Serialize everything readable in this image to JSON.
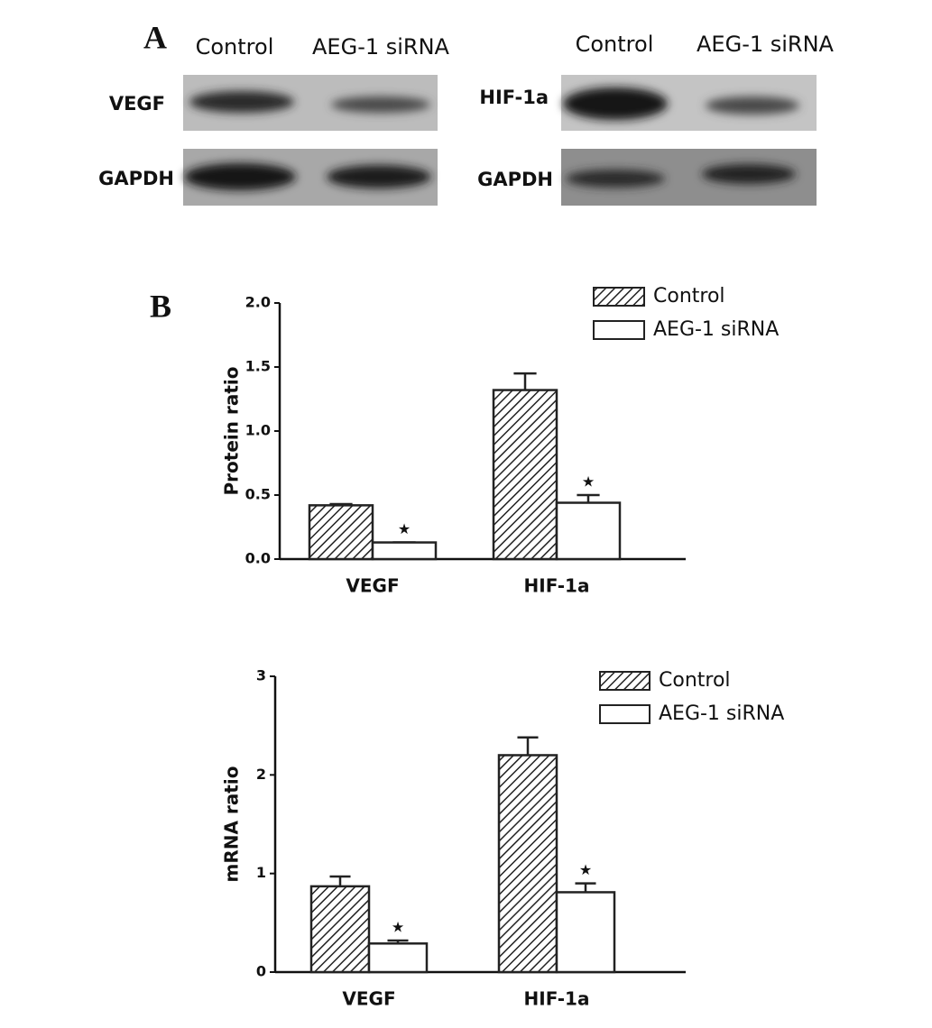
{
  "panel_a": {
    "label": "A",
    "blots": [
      {
        "lanes": [
          "Control",
          "AEG-1 siRNA"
        ],
        "rows": [
          "VEGF",
          "GAPDH"
        ]
      },
      {
        "lanes": [
          "Control",
          "AEG-1 siRNA"
        ],
        "rows": [
          "HIF-1a",
          "GAPDH"
        ]
      }
    ]
  },
  "panel_b": {
    "label": "B"
  },
  "chart_data": [
    {
      "type": "bar",
      "ylabel": "Protein ratio",
      "categories": [
        "VEGF",
        "HIF-1a"
      ],
      "series": [
        {
          "name": "Control",
          "fill": "hatch",
          "color": "#222222",
          "values": [
            0.42,
            1.32
          ],
          "errors": [
            0.01,
            0.13
          ]
        },
        {
          "name": "AEG-1 siRNA",
          "fill": "white",
          "color": "#222222",
          "values": [
            0.13,
            0.44
          ],
          "errors": [
            0.0,
            0.06
          ],
          "labels": [
            "★",
            "★"
          ]
        }
      ],
      "ylim": [
        0,
        2
      ],
      "yticks": [
        {
          "value": 0,
          "label": "0.0"
        },
        0.5,
        {
          "value": 1,
          "label": "1.0"
        },
        1.5,
        {
          "value": 2,
          "label": "2.0"
        }
      ],
      "legend": "upper right"
    },
    {
      "type": "bar",
      "ylabel": "mRNA ratio",
      "categories": [
        "VEGF",
        "HIF-1a"
      ],
      "series": [
        {
          "name": "Control",
          "fill": "hatch",
          "color": "#222222",
          "values": [
            0.87,
            2.2
          ],
          "errors": [
            0.1,
            0.18
          ]
        },
        {
          "name": "AEG-1 siRNA",
          "fill": "white",
          "color": "#222222",
          "values": [
            0.29,
            0.81
          ],
          "errors": [
            0.03,
            0.09
          ],
          "labels": [
            "★",
            "★"
          ]
        }
      ],
      "ylim": [
        0,
        3
      ],
      "yticks": [
        0,
        1,
        2,
        3
      ],
      "legend": "upper right"
    }
  ]
}
